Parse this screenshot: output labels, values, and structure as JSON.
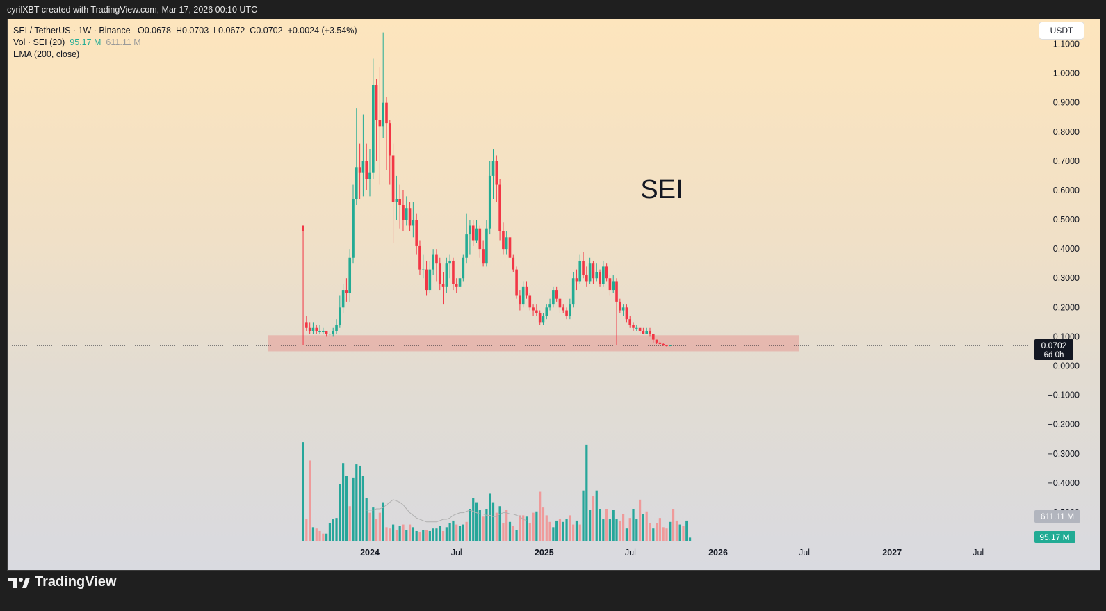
{
  "header": {
    "attribution": "cyrilXBT created with TradingView.com, Mar 17, 2026 00:10 UTC"
  },
  "legend": {
    "symbol_line": "SEI / TetherUS · 1W · Binance",
    "open": "O0.0678",
    "high": "H0.0703",
    "low": "L0.0672",
    "close": "C0.0702",
    "change": "+0.0024 (+3.54%)",
    "vol_label": "Vol · SEI (20)",
    "vol_value": "95.17 M",
    "vol_ma": "611.11 M",
    "ema_label": "EMA (200, close)"
  },
  "currency_button": "USDT",
  "annotation_text": "SEI",
  "price_label": {
    "value": "0.0702",
    "countdown": "6d 0h"
  },
  "volume_labels": {
    "ma": "611.11 M",
    "current": "95.17 M"
  },
  "footer": {
    "brand": "TradingView"
  },
  "colors": {
    "up": "#22ab94",
    "down": "#f23645",
    "vol_up": "#26a69a",
    "vol_down": "#ef9a9a",
    "zone": "#e57373"
  },
  "chart_data": {
    "type": "candlestick",
    "title": "SEI / TetherUS · 1W · Binance",
    "ylim": [
      -0.6,
      1.12
    ],
    "y_ticks": [
      "1.1000",
      "1.0000",
      "0.9000",
      "0.8000",
      "0.7000",
      "0.6000",
      "0.5000",
      "0.4000",
      "0.3000",
      "0.2000",
      "0.1000",
      "0.0000",
      "−0.1000",
      "−0.2000",
      "−0.3000",
      "−0.4000",
      "−0.5000"
    ],
    "y_tick_values": [
      1.1,
      1.0,
      0.9,
      0.8,
      0.7,
      0.6,
      0.5,
      0.4,
      0.3,
      0.2,
      0.1,
      0.0,
      -0.1,
      -0.2,
      -0.3,
      -0.4,
      -0.5
    ],
    "x_ticks": [
      {
        "label": "2024",
        "date": "2024-01-01",
        "bold": true
      },
      {
        "label": "Jul",
        "date": "2024-07-01",
        "bold": false
      },
      {
        "label": "2025",
        "date": "2025-01-01",
        "bold": true
      },
      {
        "label": "Jul",
        "date": "2025-07-01",
        "bold": false
      },
      {
        "label": "2026",
        "date": "2026-01-01",
        "bold": true
      },
      {
        "label": "Jul",
        "date": "2026-07-01",
        "bold": false
      },
      {
        "label": "2027",
        "date": "2027-01-01",
        "bold": true
      },
      {
        "label": "Jul",
        "date": "2027-07-01",
        "bold": false
      }
    ],
    "support_zone": {
      "low": 0.05,
      "high": 0.105,
      "from": "2023-06-01",
      "to": "2026-06-20"
    },
    "last_price": 0.0702,
    "start_date": "2023-08-14",
    "candles": [
      [
        0.48,
        0.46,
        0.48,
        0.07,
        0.15
      ],
      [
        0.15,
        0.13,
        0.17,
        0.12,
        0.13
      ],
      [
        0.13,
        0.12,
        0.15,
        0.11,
        0.12
      ],
      [
        0.12,
        0.13,
        0.15,
        0.11,
        0.12
      ],
      [
        0.13,
        0.12,
        0.14,
        0.11,
        0.12
      ],
      [
        0.12,
        0.12,
        0.14,
        0.11,
        0.12
      ],
      [
        0.12,
        0.12,
        0.13,
        0.11,
        0.12
      ],
      [
        0.12,
        0.11,
        0.12,
        0.1,
        0.11
      ],
      [
        0.11,
        0.11,
        0.12,
        0.1,
        0.11
      ],
      [
        0.11,
        0.12,
        0.13,
        0.1,
        0.12
      ],
      [
        0.12,
        0.14,
        0.16,
        0.11,
        0.14
      ],
      [
        0.14,
        0.2,
        0.24,
        0.13,
        0.2
      ],
      [
        0.2,
        0.26,
        0.28,
        0.18,
        0.26
      ],
      [
        0.26,
        0.25,
        0.3,
        0.22,
        0.25
      ],
      [
        0.25,
        0.37,
        0.4,
        0.22,
        0.37
      ],
      [
        0.37,
        0.57,
        0.62,
        0.35,
        0.57
      ],
      [
        0.57,
        0.68,
        0.88,
        0.55,
        0.68
      ],
      [
        0.68,
        0.66,
        0.76,
        0.57,
        0.66
      ],
      [
        0.66,
        0.7,
        0.86,
        0.58,
        0.7
      ],
      [
        0.7,
        0.64,
        0.76,
        0.6,
        0.64
      ],
      [
        0.64,
        0.66,
        0.74,
        0.58,
        0.66
      ],
      [
        0.66,
        0.96,
        1.05,
        0.64,
        0.96
      ],
      [
        0.96,
        0.84,
        0.98,
        0.7,
        0.84
      ],
      [
        0.84,
        0.82,
        1.02,
        0.62,
        0.82
      ],
      [
        0.82,
        0.9,
        1.14,
        0.78,
        0.9
      ],
      [
        0.9,
        0.83,
        0.92,
        0.67,
        0.83
      ],
      [
        0.83,
        0.72,
        0.84,
        0.62,
        0.72
      ],
      [
        0.72,
        0.56,
        0.76,
        0.42,
        0.56
      ],
      [
        0.56,
        0.57,
        0.65,
        0.5,
        0.57
      ],
      [
        0.57,
        0.55,
        0.62,
        0.47,
        0.55
      ],
      [
        0.55,
        0.5,
        0.6,
        0.46,
        0.5
      ],
      [
        0.5,
        0.54,
        0.58,
        0.48,
        0.54
      ],
      [
        0.54,
        0.48,
        0.56,
        0.46,
        0.48
      ],
      [
        0.48,
        0.5,
        0.56,
        0.44,
        0.5
      ],
      [
        0.5,
        0.41,
        0.52,
        0.38,
        0.41
      ],
      [
        0.41,
        0.33,
        0.43,
        0.31,
        0.33
      ],
      [
        0.33,
        0.33,
        0.38,
        0.3,
        0.33
      ],
      [
        0.33,
        0.26,
        0.36,
        0.24,
        0.26
      ],
      [
        0.26,
        0.33,
        0.36,
        0.25,
        0.33
      ],
      [
        0.33,
        0.38,
        0.4,
        0.31,
        0.38
      ],
      [
        0.38,
        0.35,
        0.4,
        0.29,
        0.35
      ],
      [
        0.35,
        0.28,
        0.37,
        0.26,
        0.28
      ],
      [
        0.28,
        0.27,
        0.32,
        0.21,
        0.27
      ],
      [
        0.27,
        0.35,
        0.37,
        0.25,
        0.35
      ],
      [
        0.35,
        0.36,
        0.38,
        0.3,
        0.36
      ],
      [
        0.36,
        0.28,
        0.37,
        0.26,
        0.28
      ],
      [
        0.28,
        0.27,
        0.3,
        0.25,
        0.27
      ],
      [
        0.27,
        0.3,
        0.33,
        0.26,
        0.3
      ],
      [
        0.3,
        0.37,
        0.38,
        0.29,
        0.37
      ],
      [
        0.37,
        0.45,
        0.52,
        0.35,
        0.45
      ],
      [
        0.45,
        0.48,
        0.5,
        0.38,
        0.48
      ],
      [
        0.48,
        0.43,
        0.5,
        0.41,
        0.43
      ],
      [
        0.43,
        0.47,
        0.5,
        0.42,
        0.47
      ],
      [
        0.47,
        0.4,
        0.48,
        0.37,
        0.4
      ],
      [
        0.4,
        0.35,
        0.43,
        0.34,
        0.35
      ],
      [
        0.35,
        0.47,
        0.5,
        0.34,
        0.47
      ],
      [
        0.47,
        0.65,
        0.7,
        0.45,
        0.65
      ],
      [
        0.65,
        0.7,
        0.74,
        0.57,
        0.7
      ],
      [
        0.7,
        0.62,
        0.72,
        0.56,
        0.62
      ],
      [
        0.62,
        0.46,
        0.64,
        0.43,
        0.46
      ],
      [
        0.46,
        0.4,
        0.49,
        0.38,
        0.4
      ],
      [
        0.4,
        0.44,
        0.46,
        0.38,
        0.44
      ],
      [
        0.44,
        0.37,
        0.45,
        0.34,
        0.37
      ],
      [
        0.37,
        0.33,
        0.38,
        0.32,
        0.33
      ],
      [
        0.33,
        0.24,
        0.34,
        0.23,
        0.24
      ],
      [
        0.24,
        0.21,
        0.26,
        0.19,
        0.21
      ],
      [
        0.21,
        0.27,
        0.29,
        0.2,
        0.27
      ],
      [
        0.27,
        0.24,
        0.29,
        0.23,
        0.24
      ],
      [
        0.24,
        0.2,
        0.25,
        0.19,
        0.2
      ],
      [
        0.2,
        0.19,
        0.21,
        0.17,
        0.19
      ],
      [
        0.19,
        0.18,
        0.21,
        0.17,
        0.18
      ],
      [
        0.18,
        0.15,
        0.19,
        0.14,
        0.15
      ],
      [
        0.15,
        0.17,
        0.18,
        0.14,
        0.17
      ],
      [
        0.17,
        0.2,
        0.21,
        0.16,
        0.2
      ],
      [
        0.2,
        0.21,
        0.23,
        0.19,
        0.21
      ],
      [
        0.21,
        0.26,
        0.27,
        0.2,
        0.26
      ],
      [
        0.26,
        0.23,
        0.27,
        0.22,
        0.23
      ],
      [
        0.23,
        0.2,
        0.24,
        0.18,
        0.2
      ],
      [
        0.2,
        0.19,
        0.21,
        0.18,
        0.19
      ],
      [
        0.19,
        0.17,
        0.2,
        0.16,
        0.17
      ],
      [
        0.17,
        0.21,
        0.23,
        0.16,
        0.21
      ],
      [
        0.21,
        0.3,
        0.32,
        0.2,
        0.3
      ],
      [
        0.3,
        0.29,
        0.33,
        0.26,
        0.29
      ],
      [
        0.29,
        0.36,
        0.38,
        0.28,
        0.36
      ],
      [
        0.36,
        0.31,
        0.39,
        0.3,
        0.31
      ],
      [
        0.31,
        0.29,
        0.34,
        0.27,
        0.29
      ],
      [
        0.29,
        0.35,
        0.37,
        0.28,
        0.35
      ],
      [
        0.35,
        0.3,
        0.36,
        0.28,
        0.3
      ],
      [
        0.3,
        0.32,
        0.35,
        0.29,
        0.32
      ],
      [
        0.32,
        0.28,
        0.33,
        0.27,
        0.28
      ],
      [
        0.28,
        0.34,
        0.36,
        0.27,
        0.34
      ],
      [
        0.34,
        0.3,
        0.35,
        0.29,
        0.3
      ],
      [
        0.3,
        0.26,
        0.31,
        0.24,
        0.26
      ],
      [
        0.26,
        0.29,
        0.31,
        0.25,
        0.29
      ],
      [
        0.29,
        0.22,
        0.3,
        0.07,
        0.22
      ],
      [
        0.22,
        0.19,
        0.23,
        0.18,
        0.19
      ],
      [
        0.19,
        0.2,
        0.21,
        0.17,
        0.2
      ],
      [
        0.2,
        0.16,
        0.21,
        0.15,
        0.16
      ],
      [
        0.16,
        0.14,
        0.17,
        0.13,
        0.14
      ],
      [
        0.14,
        0.13,
        0.15,
        0.12,
        0.13
      ],
      [
        0.13,
        0.13,
        0.14,
        0.12,
        0.13
      ],
      [
        0.13,
        0.12,
        0.13,
        0.11,
        0.12
      ],
      [
        0.12,
        0.11,
        0.13,
        0.11,
        0.11
      ],
      [
        0.11,
        0.12,
        0.13,
        0.11,
        0.12
      ],
      [
        0.12,
        0.11,
        0.13,
        0.1,
        0.11
      ],
      [
        0.11,
        0.09,
        0.11,
        0.08,
        0.09
      ],
      [
        0.09,
        0.08,
        0.09,
        0.075,
        0.08
      ],
      [
        0.08,
        0.075,
        0.085,
        0.07,
        0.075
      ],
      [
        0.075,
        0.07,
        0.078,
        0.068,
        0.07
      ],
      [
        0.07,
        0.068,
        0.072,
        0.066,
        0.068
      ],
      [
        0.0678,
        0.0702,
        0.0703,
        0.0672,
        0.0702
      ]
    ],
    "volume": [
      [
        0.76,
        1
      ],
      [
        0.17,
        0
      ],
      [
        0.62,
        0
      ],
      [
        0.11,
        1
      ],
      [
        0.1,
        0
      ],
      [
        0.08,
        0
      ],
      [
        0.06,
        0
      ],
      [
        0.06,
        1
      ],
      [
        0.14,
        1
      ],
      [
        0.17,
        1
      ],
      [
        0.18,
        1
      ],
      [
        0.44,
        1
      ],
      [
        0.6,
        1
      ],
      [
        0.5,
        1
      ],
      [
        0.27,
        0
      ],
      [
        0.49,
        1
      ],
      [
        0.59,
        1
      ],
      [
        0.58,
        1
      ],
      [
        0.5,
        1
      ],
      [
        0.33,
        1
      ],
      [
        0.22,
        0
      ],
      [
        0.26,
        1
      ],
      [
        0.17,
        0
      ],
      [
        0.22,
        0
      ],
      [
        0.3,
        1
      ],
      [
        0.11,
        0
      ],
      [
        0.1,
        0
      ],
      [
        0.13,
        1
      ],
      [
        0.09,
        0
      ],
      [
        0.12,
        1
      ],
      [
        0.13,
        0
      ],
      [
        0.09,
        1
      ],
      [
        0.13,
        0
      ],
      [
        0.11,
        1
      ],
      [
        0.08,
        1
      ],
      [
        0.07,
        0
      ],
      [
        0.09,
        1
      ],
      [
        0.09,
        0
      ],
      [
        0.08,
        1
      ],
      [
        0.1,
        1
      ],
      [
        0.1,
        1
      ],
      [
        0.12,
        1
      ],
      [
        0.08,
        0
      ],
      [
        0.11,
        1
      ],
      [
        0.14,
        1
      ],
      [
        0.16,
        1
      ],
      [
        0.13,
        0
      ],
      [
        0.12,
        1
      ],
      [
        0.13,
        1
      ],
      [
        0.15,
        0
      ],
      [
        0.25,
        1
      ],
      [
        0.33,
        1
      ],
      [
        0.3,
        1
      ],
      [
        0.24,
        1
      ],
      [
        0.19,
        0
      ],
      [
        0.25,
        1
      ],
      [
        0.37,
        1
      ],
      [
        0.3,
        1
      ],
      [
        0.22,
        0
      ],
      [
        0.27,
        1
      ],
      [
        0.14,
        0
      ],
      [
        0.24,
        0
      ],
      [
        0.15,
        1
      ],
      [
        0.12,
        0
      ],
      [
        0.09,
        1
      ],
      [
        0.2,
        0
      ],
      [
        0.2,
        0
      ],
      [
        0.19,
        1
      ],
      [
        0.14,
        0
      ],
      [
        0.22,
        0
      ],
      [
        0.23,
        1
      ],
      [
        0.38,
        0
      ],
      [
        0.26,
        0
      ],
      [
        0.2,
        0
      ],
      [
        0.15,
        0
      ],
      [
        0.11,
        1
      ],
      [
        0.16,
        1
      ],
      [
        0.17,
        0
      ],
      [
        0.15,
        1
      ],
      [
        0.17,
        1
      ],
      [
        0.2,
        0
      ],
      [
        0.13,
        0
      ],
      [
        0.16,
        1
      ],
      [
        0.13,
        0
      ],
      [
        0.39,
        1
      ],
      [
        0.74,
        1
      ],
      [
        0.24,
        1
      ],
      [
        0.35,
        0
      ],
      [
        0.39,
        1
      ],
      [
        0.25,
        1
      ],
      [
        0.17,
        1
      ],
      [
        0.25,
        0
      ],
      [
        0.17,
        1
      ],
      [
        0.24,
        1
      ],
      [
        0.17,
        1
      ],
      [
        0.16,
        0
      ],
      [
        0.21,
        0
      ],
      [
        0.1,
        1
      ],
      [
        0.18,
        0
      ],
      [
        0.25,
        1
      ],
      [
        0.17,
        1
      ],
      [
        0.32,
        0
      ],
      [
        0.21,
        1
      ],
      [
        0.23,
        0
      ],
      [
        0.14,
        0
      ],
      [
        0.1,
        1
      ],
      [
        0.14,
        0
      ],
      [
        0.18,
        0
      ],
      [
        0.11,
        0
      ],
      [
        0.1,
        0
      ],
      [
        0.15,
        1
      ],
      [
        0.25,
        0
      ],
      [
        0.16,
        0
      ],
      [
        0.13,
        1
      ],
      [
        0.12,
        0
      ],
      [
        0.16,
        1
      ],
      [
        0.03,
        1
      ]
    ],
    "volume_ma": [
      0.24,
      0.24,
      0.24,
      0.25,
      0.25,
      0.26,
      0.28,
      0.3,
      0.32,
      0.31,
      0.3,
      0.28,
      0.25,
      0.22,
      0.2,
      0.18,
      0.17,
      0.16,
      0.15,
      0.15,
      0.15,
      0.15,
      0.16,
      0.17,
      0.17,
      0.18,
      0.2,
      0.21,
      0.22,
      0.22,
      0.23,
      0.24,
      0.23,
      0.22,
      0.21,
      0.21,
      0.2,
      0.2,
      0.19,
      0.19,
      0.21,
      0.22,
      0.22,
      0.21,
      0.21,
      0.2,
      0.19,
      0.17,
      0.16
    ]
  }
}
